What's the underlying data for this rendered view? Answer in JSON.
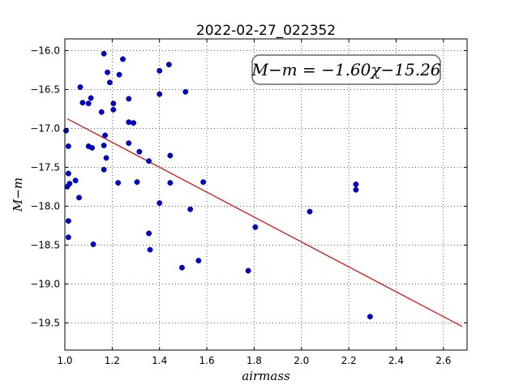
{
  "chart_data": {
    "type": "scatter",
    "title": "2022-02-27_022352",
    "xlabel": "airmass",
    "ylabel": "M−m",
    "xlim": [
      1.0,
      2.7
    ],
    "ylim": [
      -19.85,
      -15.85
    ],
    "x_ticks": [
      1.0,
      1.2,
      1.4,
      1.6,
      1.8,
      2.0,
      2.2,
      2.4,
      2.6
    ],
    "x_tick_labels": [
      "1.0",
      "1.2",
      "1.4",
      "1.6",
      "1.8",
      "2.0",
      "2.2",
      "2.4",
      "2.6"
    ],
    "y_ticks": [
      -16.0,
      -16.5,
      -17.0,
      -17.5,
      -18.0,
      -18.5,
      -19.0,
      -19.5
    ],
    "y_tick_labels": [
      "−16.0",
      "−16.5",
      "−17.0",
      "−17.5",
      "−18.0",
      "−18.5",
      "−19.0",
      "−19.5"
    ],
    "grid": true,
    "annotation": "M−m = −1.60χ−15.26",
    "colors": {
      "points": "#0000cc",
      "fit_line": "#dd0000"
    },
    "fit": {
      "slope": -1.6,
      "intercept": -15.26,
      "x_range": [
        1.01,
        2.68
      ]
    },
    "points": [
      {
        "x": 1.165,
        "y": -16.04
      },
      {
        "x": 1.245,
        "y": -16.11
      },
      {
        "x": 1.44,
        "y": -16.18
      },
      {
        "x": 1.18,
        "y": -16.28
      },
      {
        "x": 1.23,
        "y": -16.31
      },
      {
        "x": 1.4,
        "y": -16.26
      },
      {
        "x": 1.19,
        "y": -16.41
      },
      {
        "x": 1.065,
        "y": -16.47
      },
      {
        "x": 1.51,
        "y": -16.53
      },
      {
        "x": 1.4,
        "y": -16.56
      },
      {
        "x": 1.11,
        "y": -16.61
      },
      {
        "x": 1.27,
        "y": -16.62
      },
      {
        "x": 1.075,
        "y": -16.67
      },
      {
        "x": 1.1,
        "y": -16.68
      },
      {
        "x": 1.205,
        "y": -16.68
      },
      {
        "x": 1.205,
        "y": -16.76
      },
      {
        "x": 1.155,
        "y": -16.79
      },
      {
        "x": 1.27,
        "y": -16.92
      },
      {
        "x": 1.29,
        "y": -16.93
      },
      {
        "x": 1.005,
        "y": -17.03
      },
      {
        "x": 1.17,
        "y": -17.09
      },
      {
        "x": 1.27,
        "y": -17.19
      },
      {
        "x": 1.165,
        "y": -17.22
      },
      {
        "x": 1.015,
        "y": -17.23
      },
      {
        "x": 1.1,
        "y": -17.23
      },
      {
        "x": 1.115,
        "y": -17.25
      },
      {
        "x": 1.315,
        "y": -17.3
      },
      {
        "x": 1.445,
        "y": -17.35
      },
      {
        "x": 1.175,
        "y": -17.38
      },
      {
        "x": 1.355,
        "y": -17.42
      },
      {
        "x": 1.165,
        "y": -17.53
      },
      {
        "x": 1.015,
        "y": -17.58
      },
      {
        "x": 1.045,
        "y": -17.67
      },
      {
        "x": 1.225,
        "y": -17.7
      },
      {
        "x": 1.305,
        "y": -17.69
      },
      {
        "x": 1.445,
        "y": -17.7
      },
      {
        "x": 1.585,
        "y": -17.69
      },
      {
        "x": 1.02,
        "y": -17.71
      },
      {
        "x": 2.23,
        "y": -17.72
      },
      {
        "x": 1.01,
        "y": -17.75
      },
      {
        "x": 2.23,
        "y": -17.79
      },
      {
        "x": 1.06,
        "y": -17.89
      },
      {
        "x": 1.4,
        "y": -17.96
      },
      {
        "x": 1.53,
        "y": -18.04
      },
      {
        "x": 2.035,
        "y": -18.07
      },
      {
        "x": 1.015,
        "y": -18.19
      },
      {
        "x": 1.805,
        "y": -18.27
      },
      {
        "x": 1.355,
        "y": -18.35
      },
      {
        "x": 1.015,
        "y": -18.4
      },
      {
        "x": 1.12,
        "y": -18.49
      },
      {
        "x": 1.36,
        "y": -18.56
      },
      {
        "x": 1.565,
        "y": -18.7
      },
      {
        "x": 1.495,
        "y": -18.79
      },
      {
        "x": 1.775,
        "y": -18.83
      },
      {
        "x": 2.29,
        "y": -19.42
      }
    ]
  }
}
